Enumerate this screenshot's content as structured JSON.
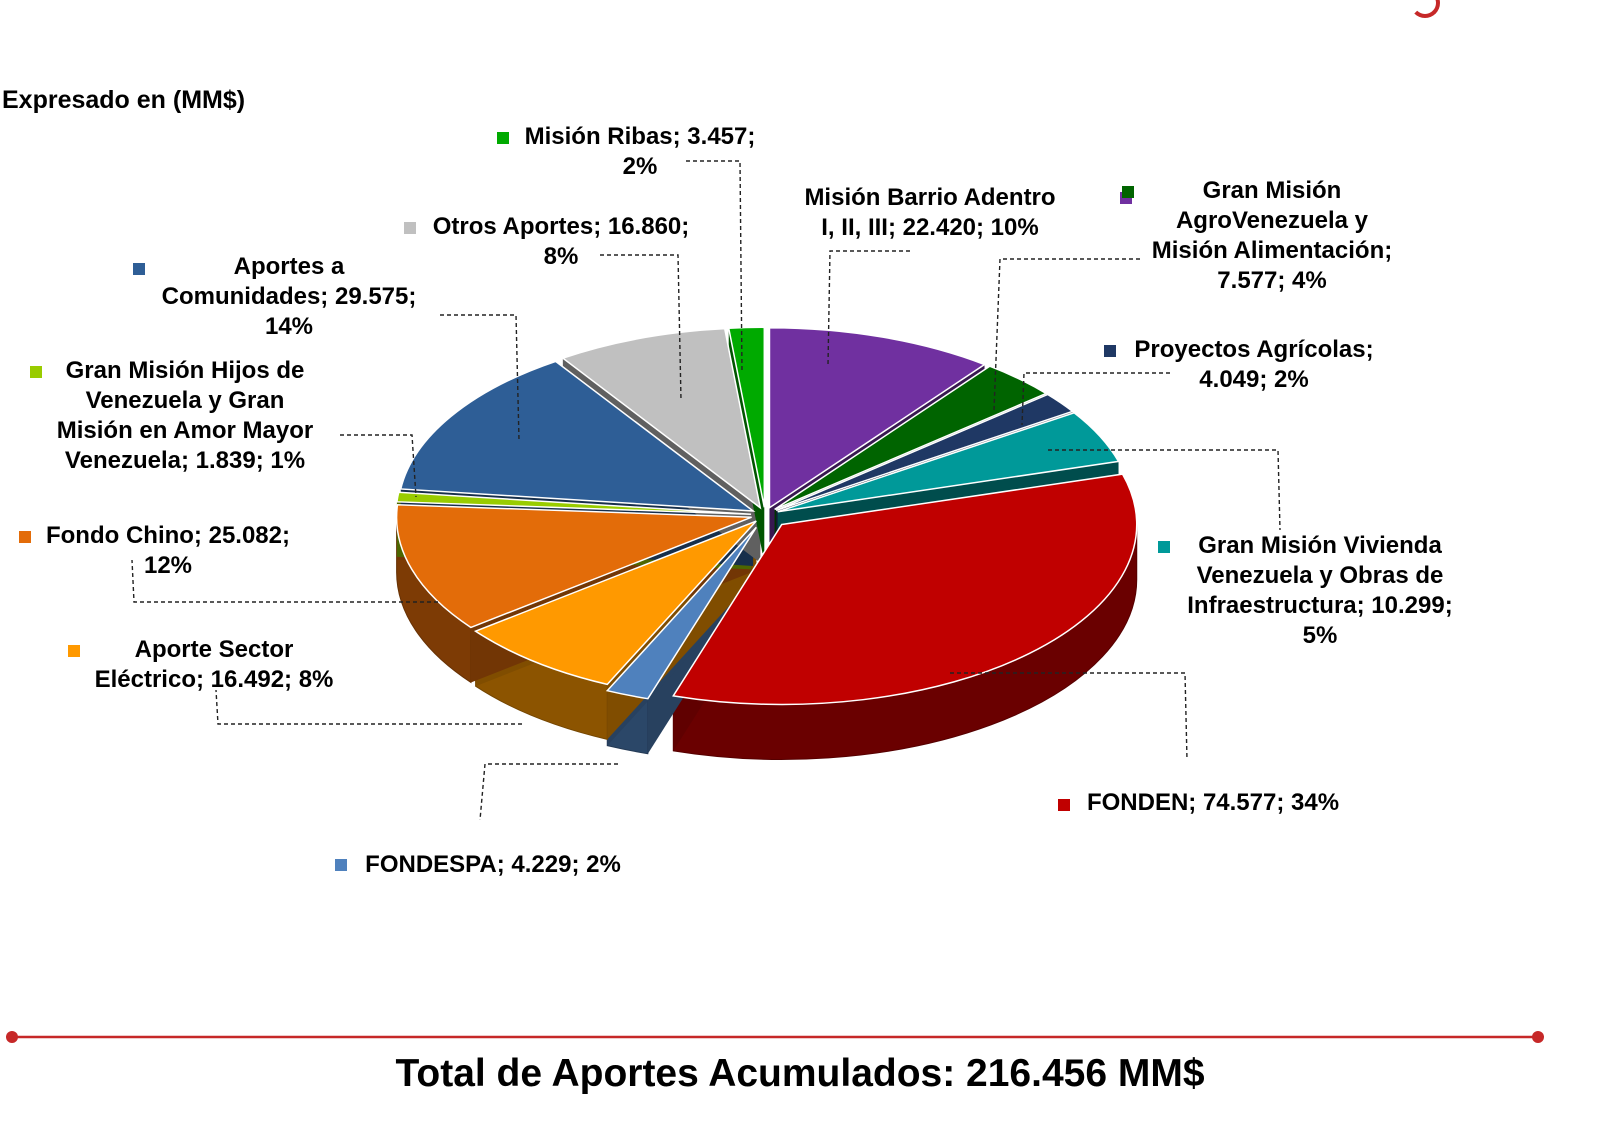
{
  "subtitle": "Expresado en (MM$)",
  "total_text": "Total de Aportes Acumulados: 216.456 MM$",
  "chart_data": {
    "type": "pie",
    "title": "",
    "unit": "MM$",
    "total": 216456,
    "slices": [
      {
        "name": "Misión Barrio Adentro I, II, III",
        "value": "22.420",
        "percent": "10%",
        "color": "#7030a0",
        "label_lines": [
          "Misión Barrio Adentro",
          "I, II, III; 22.420; 10%"
        ]
      },
      {
        "name": "Gran Misión AgroVenezuela y Misión Alimentación",
        "value": "7.577",
        "percent": "4%",
        "color": "#006400",
        "label_lines": [
          "Gran Misión",
          "AgroVenezuela y",
          "Misión Alimentación;",
          "7.577; 4%"
        ]
      },
      {
        "name": "Proyectos Agrícolas",
        "value": "4.049",
        "percent": "2%",
        "color": "#1f3864",
        "label_lines": [
          "Proyectos Agrícolas;",
          "4.049; 2%"
        ]
      },
      {
        "name": "Gran Misión Vivienda Venezuela y Obras de Infraestructura",
        "value": "10.299",
        "percent": "5%",
        "color": "#009999",
        "label_lines": [
          "Gran Misión Vivienda",
          "Venezuela y Obras de",
          "Infraestructura; 10.299;",
          "5%"
        ]
      },
      {
        "name": "FONDEN",
        "value": "74.577",
        "percent": "34%",
        "color": "#c00000",
        "label_lines": [
          "FONDEN; 74.577; 34%"
        ]
      },
      {
        "name": "FONDESPA",
        "value": "4.229",
        "percent": "2%",
        "color": "#4f81bd",
        "label_lines": [
          "FONDESPA; 4.229; 2%"
        ]
      },
      {
        "name": "Aporte Sector Eléctrico",
        "value": "16.492",
        "percent": "8%",
        "color": "#ff9900",
        "label_lines": [
          "Aporte Sector",
          "Eléctrico; 16.492; 8%"
        ]
      },
      {
        "name": "Fondo Chino",
        "value": "25.082",
        "percent": "12%",
        "color": "#e36c09",
        "label_lines": [
          "Fondo Chino; 25.082;",
          "12%"
        ]
      },
      {
        "name": "Gran Misión Hijos de Venezuela y Gran Misión en Amor Mayor Venezuela",
        "value": "1.839",
        "percent": "1%",
        "color": "#99cc00",
        "label_lines": [
          "Gran Misión Hijos de",
          "Venezuela y Gran",
          "Misión en Amor Mayor",
          "Venezuela; 1.839; 1%"
        ]
      },
      {
        "name": "Aportes a Comunidades",
        "value": "29.575",
        "percent": "14%",
        "color": "#2e5e96",
        "label_lines": [
          "Aportes a",
          "Comunidades; 29.575;",
          "14%"
        ]
      },
      {
        "name": "Otros Aportes",
        "value": "16.860",
        "percent": "8%",
        "color": "#c0c0c0",
        "label_lines": [
          "Otros Aportes; 16.860;",
          "8%"
        ]
      },
      {
        "name": "Misión Ribas",
        "value": "3.457",
        "percent": "2%",
        "color": "#00aa00",
        "label_lines": [
          "Misión Ribas; 3.457;",
          "2%"
        ]
      }
    ],
    "legend": "inline-labels",
    "style": "3d-exploded"
  },
  "footer": {
    "accent_color": "#c62828"
  }
}
